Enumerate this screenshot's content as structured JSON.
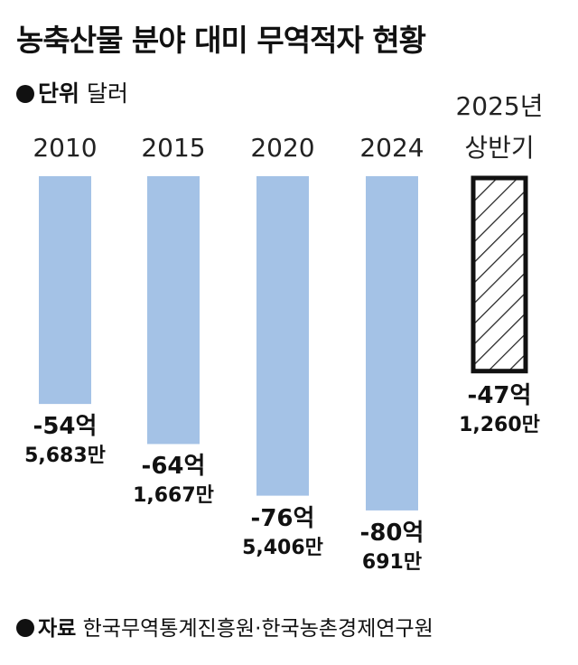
{
  "chart_data": {
    "type": "bar",
    "title": "농축산물 분야 대미 무역적자 현황",
    "unit_label": "단위",
    "unit": "달러",
    "categories": [
      "2010",
      "2015",
      "2020",
      "2024",
      "2025년\n상반기"
    ],
    "values": [
      -5456830000,
      -6416670000,
      -7654060000,
      -8006910000,
      -4712600000
    ],
    "value_labels": [
      [
        "-54억",
        "5,683만"
      ],
      [
        "-64억",
        "1,667만"
      ],
      [
        "-76억",
        "5,406만"
      ],
      [
        "-80억",
        "691만"
      ],
      [
        "-47억",
        "1,260만"
      ]
    ],
    "color": "#a4c2e6",
    "source_label": "자료",
    "source": "한국무역통계진흥원·한국농촌경제연구원"
  }
}
